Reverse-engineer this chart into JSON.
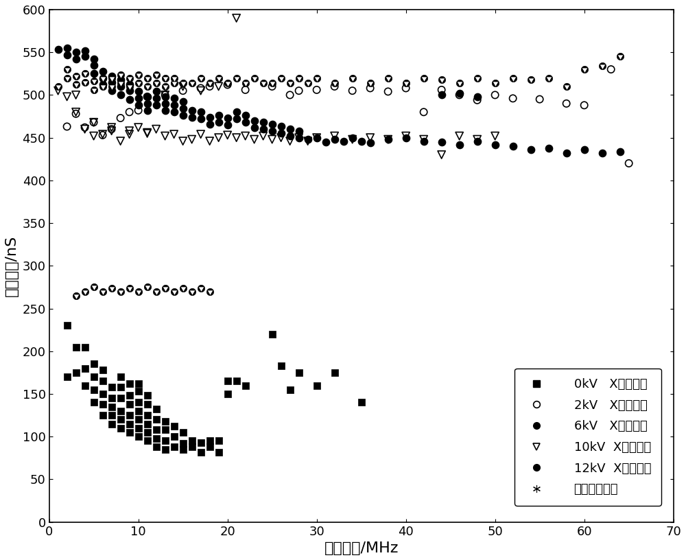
{
  "xlabel": "等效频宽/MHz",
  "ylabel": "等效时长/nS",
  "xlim": [
    0,
    70
  ],
  "ylim": [
    0,
    600
  ],
  "xticks": [
    0,
    10,
    20,
    30,
    40,
    50,
    60,
    70
  ],
  "yticks": [
    0,
    50,
    100,
    150,
    200,
    250,
    300,
    350,
    400,
    450,
    500,
    550,
    600
  ],
  "legend_labels": [
    "0kV   X射线信号",
    "2kV   X射线信号",
    "6kV   X射线信号",
    "10kV  X射线信号",
    "12kV  X射线信号",
    "局部放电信号"
  ],
  "s0kV_x": [
    2,
    2,
    3,
    3,
    4,
    4,
    4,
    5,
    5,
    5,
    5,
    6,
    6,
    6,
    6,
    6,
    7,
    7,
    7,
    7,
    7,
    8,
    8,
    8,
    8,
    8,
    8,
    9,
    9,
    9,
    9,
    9,
    9,
    10,
    10,
    10,
    10,
    10,
    10,
    10,
    11,
    11,
    11,
    11,
    11,
    11,
    12,
    12,
    12,
    12,
    12,
    13,
    13,
    13,
    13,
    14,
    14,
    14,
    15,
    15,
    15,
    16,
    16,
    17,
    17,
    18,
    18,
    19,
    19,
    20,
    20,
    21,
    22,
    25,
    26,
    27,
    28,
    30,
    32,
    35,
    65
  ],
  "s0kV_y": [
    170,
    230,
    175,
    205,
    160,
    180,
    205,
    140,
    155,
    170,
    185,
    125,
    138,
    150,
    165,
    178,
    115,
    125,
    135,
    145,
    158,
    110,
    120,
    130,
    145,
    158,
    170,
    105,
    115,
    125,
    138,
    148,
    162,
    100,
    110,
    120,
    130,
    140,
    153,
    162,
    95,
    105,
    115,
    125,
    138,
    148,
    88,
    98,
    108,
    120,
    132,
    85,
    95,
    108,
    118,
    88,
    100,
    112,
    85,
    92,
    105,
    88,
    95,
    82,
    93,
    88,
    95,
    82,
    95,
    150,
    165,
    165,
    160,
    220,
    183,
    155,
    175,
    160,
    175,
    140,
    130
  ],
  "s2kV_x": [
    2,
    3,
    4,
    5,
    6,
    7,
    8,
    9,
    10,
    11,
    13,
    15,
    17,
    18,
    20,
    22,
    25,
    27,
    28,
    30,
    32,
    34,
    36,
    38,
    40,
    42,
    44,
    46,
    48,
    50,
    52,
    55,
    58,
    60,
    63,
    65
  ],
  "s2kV_y": [
    463,
    478,
    462,
    468,
    453,
    460,
    473,
    480,
    482,
    498,
    500,
    505,
    508,
    510,
    512,
    506,
    510,
    500,
    505,
    506,
    510,
    505,
    508,
    504,
    508,
    480,
    506,
    500,
    494,
    500,
    496,
    495,
    490,
    488,
    530,
    420
  ],
  "s6kV_x": [
    1,
    2,
    2,
    3,
    3,
    4,
    4,
    5,
    5,
    5,
    6,
    6,
    6,
    7,
    7,
    7,
    8,
    8,
    8,
    9,
    9,
    9,
    10,
    10,
    10,
    11,
    11,
    11,
    12,
    12,
    12,
    13,
    13,
    13,
    14,
    14,
    14,
    15,
    15,
    15,
    16,
    16,
    17,
    17,
    18,
    18,
    19,
    19,
    20,
    20,
    21,
    21,
    22,
    22,
    23,
    23,
    24,
    24,
    25,
    25,
    26,
    26,
    27,
    27,
    28,
    28,
    29,
    30,
    31,
    32,
    33,
    34,
    35,
    36,
    38,
    40,
    42,
    44,
    46,
    48,
    50,
    52,
    54,
    56,
    58,
    60,
    62,
    64,
    44,
    46,
    48
  ],
  "s6kV_y": [
    553,
    547,
    555,
    542,
    550,
    545,
    552,
    525,
    535,
    542,
    512,
    520,
    528,
    505,
    515,
    522,
    500,
    510,
    518,
    495,
    505,
    512,
    488,
    496,
    504,
    482,
    490,
    498,
    488,
    496,
    504,
    482,
    490,
    498,
    480,
    488,
    496,
    476,
    484,
    492,
    474,
    482,
    472,
    480,
    466,
    474,
    468,
    476,
    465,
    473,
    472,
    480,
    468,
    476,
    462,
    470,
    460,
    468,
    458,
    466,
    455,
    463,
    452,
    460,
    450,
    458,
    448,
    450,
    445,
    448,
    446,
    450,
    446,
    444,
    448,
    450,
    446,
    445,
    442,
    446,
    442,
    440,
    436,
    438,
    432,
    436,
    432,
    434,
    500,
    502,
    498
  ],
  "s10kV_x": [
    1,
    2,
    3,
    4,
    5,
    6,
    7,
    8,
    9,
    10,
    11,
    12,
    13,
    14,
    15,
    16,
    17,
    18,
    19,
    20,
    21,
    22,
    23,
    24,
    25,
    26,
    27,
    28,
    29,
    30,
    32,
    34,
    36,
    38,
    40,
    42,
    44,
    46,
    48,
    50,
    3,
    5,
    7,
    9,
    11,
    13,
    15,
    17,
    19,
    21
  ],
  "s10kV_y": [
    505,
    498,
    480,
    460,
    452,
    454,
    458,
    446,
    454,
    462,
    456,
    460,
    452,
    454,
    446,
    448,
    454,
    446,
    450,
    453,
    450,
    452,
    448,
    452,
    448,
    450,
    446,
    450,
    446,
    450,
    452,
    448,
    450,
    448,
    452,
    448,
    430,
    452,
    448,
    452,
    500,
    468,
    462,
    458,
    455,
    500,
    510,
    505,
    510,
    590
  ],
  "s12kV_x": [
    1,
    2,
    2,
    3,
    3,
    4,
    4,
    5,
    5,
    6,
    6,
    7,
    7,
    8,
    8,
    9,
    9,
    10,
    10,
    11,
    11,
    12,
    12,
    13,
    13,
    14,
    14,
    15,
    16,
    17,
    18,
    19,
    20,
    21,
    22,
    23,
    24,
    25,
    26,
    27,
    28,
    29,
    30,
    32,
    34,
    36,
    38,
    40,
    42,
    44,
    46,
    48,
    50,
    52,
    54,
    56,
    58,
    60,
    62,
    64,
    3,
    4,
    5,
    6,
    7,
    8,
    9,
    10,
    11,
    12,
    13,
    14,
    15,
    16,
    17,
    18
  ],
  "s12kV_y": [
    510,
    520,
    530,
    512,
    522,
    515,
    525,
    506,
    516,
    510,
    520,
    510,
    520,
    514,
    524,
    510,
    520,
    514,
    524,
    510,
    520,
    514,
    524,
    510,
    520,
    514,
    520,
    514,
    514,
    520,
    514,
    520,
    514,
    520,
    514,
    520,
    514,
    514,
    520,
    514,
    520,
    514,
    520,
    514,
    520,
    514,
    520,
    514,
    520,
    518,
    514,
    520,
    514,
    520,
    518,
    520,
    510,
    530,
    534,
    545,
    265,
    270,
    275,
    270,
    274,
    270,
    274,
    270,
    275,
    270,
    274,
    270,
    274,
    270,
    274,
    270
  ],
  "spd_x": [
    25,
    25,
    25,
    26,
    26,
    26,
    26,
    27,
    27,
    27,
    27,
    28,
    28,
    28,
    28,
    29,
    29,
    29,
    29,
    25,
    25,
    26,
    26,
    27,
    27,
    28,
    28,
    29,
    29,
    25,
    26,
    27,
    28,
    29,
    25,
    26,
    27,
    28,
    25,
    26,
    27,
    28,
    25,
    26,
    27,
    28,
    25,
    26,
    27,
    28,
    25,
    26,
    27,
    28,
    25,
    26,
    27,
    28,
    25,
    26,
    27,
    28,
    15,
    16,
    17,
    17,
    18,
    19,
    19,
    20,
    20,
    21,
    22,
    23,
    24,
    15,
    16,
    17,
    18,
    19,
    20,
    21,
    22,
    23,
    24,
    25,
    26,
    27,
    28,
    29,
    25,
    26,
    27,
    28,
    29,
    25,
    26,
    27,
    28,
    29,
    25,
    26,
    27,
    28,
    25,
    26,
    27,
    28,
    25,
    26,
    27,
    28,
    25,
    26,
    27,
    28
  ],
  "spd_y": [
    450,
    445,
    440,
    448,
    443,
    438,
    433,
    446,
    441,
    436,
    431,
    444,
    439,
    434,
    429,
    442,
    437,
    432,
    427,
    435,
    430,
    432,
    427,
    430,
    425,
    428,
    423,
    426,
    421,
    422,
    418,
    420,
    416,
    414,
    408,
    406,
    404,
    402,
    395,
    393,
    391,
    389,
    380,
    378,
    376,
    374,
    365,
    363,
    361,
    359,
    350,
    348,
    346,
    344,
    335,
    333,
    331,
    329,
    320,
    318,
    316,
    314,
    295,
    300,
    296,
    308,
    304,
    315,
    310,
    320,
    316,
    326,
    330,
    328,
    335,
    285,
    290,
    298,
    302,
    308,
    312,
    318,
    322,
    326,
    330,
    290,
    295,
    300,
    305,
    310,
    298,
    303,
    308,
    313,
    318,
    285,
    290,
    295,
    300,
    305,
    275,
    280,
    285,
    290,
    295,
    265,
    270,
    275,
    255,
    260,
    265,
    245,
    290,
    295,
    300,
    305
  ]
}
